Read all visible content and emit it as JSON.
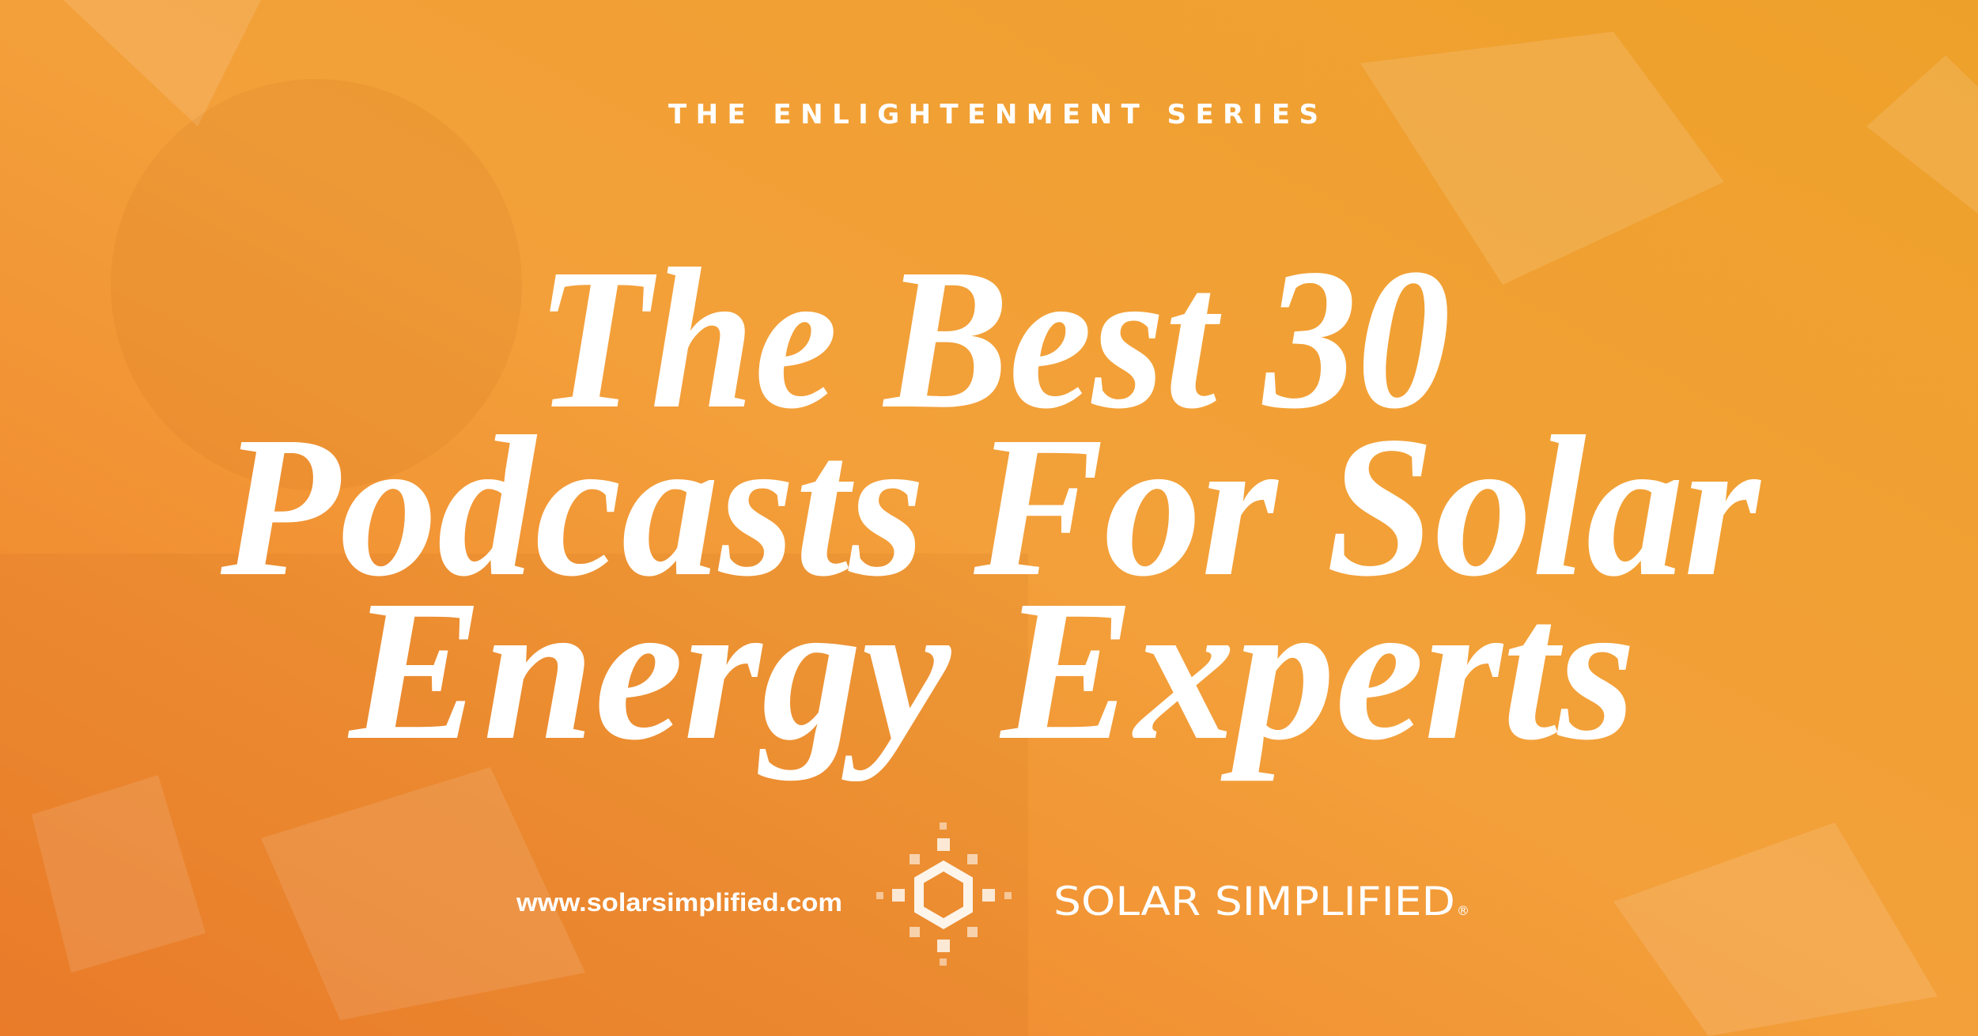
{
  "header": {
    "series": "THE ENLIGHTENMENT SERIES"
  },
  "title": {
    "lines": [
      "The Best 30",
      "Podcasts For Solar",
      "Energy Experts"
    ]
  },
  "footer": {
    "url": "www.solarsimplified.com",
    "brand": "SOLAR SIMPLIFIED",
    "registered": "®"
  }
}
